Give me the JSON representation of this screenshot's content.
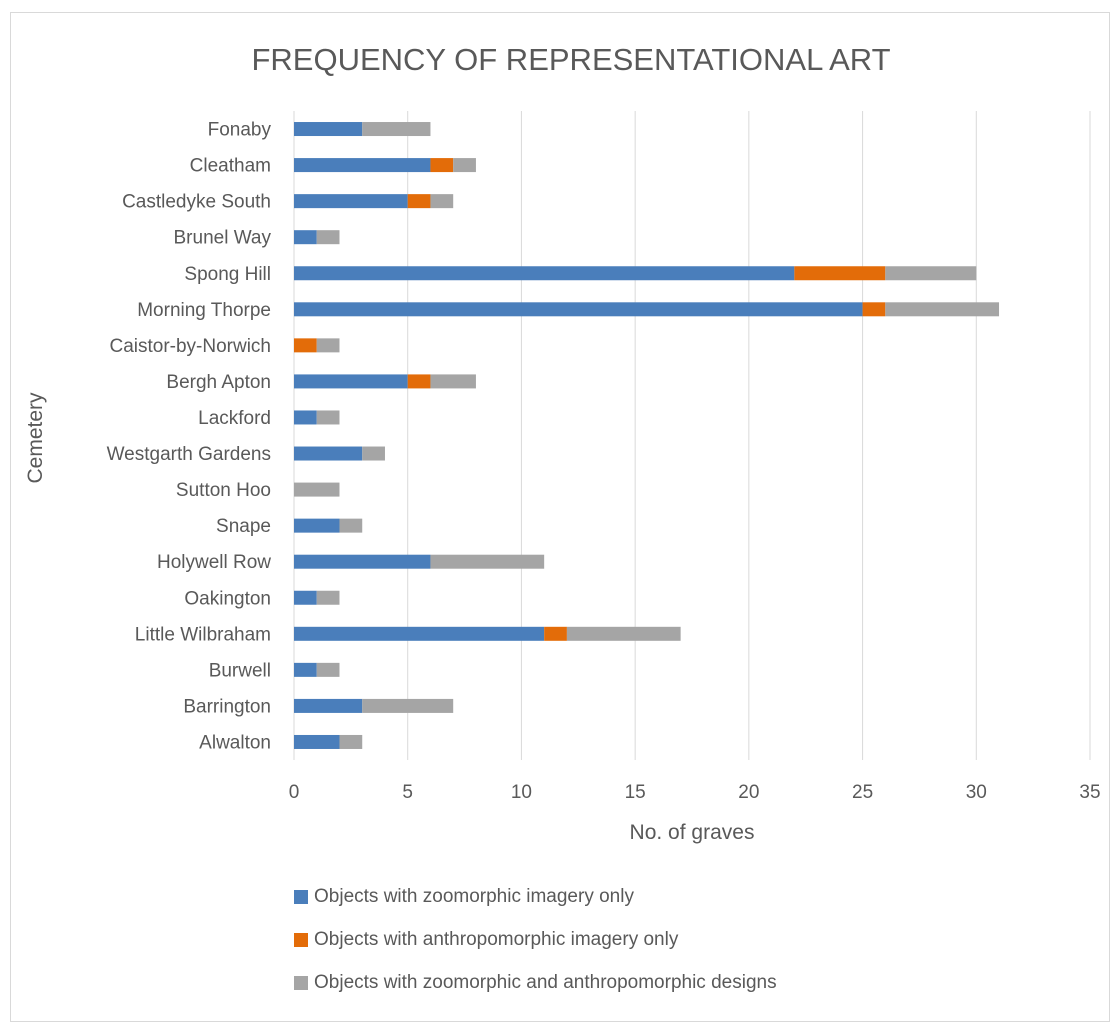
{
  "chart_data": {
    "type": "bar",
    "orientation": "horizontal",
    "stacked": true,
    "title": "FREQUENCY OF REPRESENTATIONAL ART",
    "xlabel": "No. of graves",
    "ylabel": "Cemetery",
    "xlim": [
      0,
      35
    ],
    "xticks": [
      0,
      5,
      10,
      15,
      20,
      25,
      30,
      35
    ],
    "grid": "vertical",
    "legend_position": "bottom",
    "categories": [
      "Fonaby",
      "Cleatham",
      "Castledyke South",
      "Brunel Way",
      "Spong Hill",
      "Morning Thorpe",
      "Caistor-by-Norwich",
      "Bergh Apton",
      "Lackford",
      "Westgarth Gardens",
      "Sutton Hoo",
      "Snape",
      "Holywell Row",
      "Oakington",
      "Little Wilbraham",
      "Burwell",
      "Barrington",
      "Alwalton"
    ],
    "series": [
      {
        "name": "Objects with zoomorphic imagery only",
        "color": "#4a7ebb",
        "values": [
          3,
          6,
          5,
          1,
          22,
          25,
          0,
          5,
          1,
          3,
          0,
          2,
          6,
          1,
          11,
          1,
          3,
          2
        ]
      },
      {
        "name": "Objects with anthropomorphic imagery only",
        "color": "#e36c09",
        "values": [
          0,
          1,
          1,
          0,
          4,
          1,
          1,
          1,
          0,
          0,
          0,
          0,
          0,
          0,
          1,
          0,
          0,
          0
        ]
      },
      {
        "name": "Objects with zoomorphic and anthropomorphic designs",
        "color": "#a5a5a5",
        "values": [
          3,
          1,
          1,
          1,
          4,
          5,
          1,
          2,
          1,
          1,
          2,
          1,
          5,
          1,
          5,
          1,
          4,
          1
        ]
      }
    ]
  }
}
